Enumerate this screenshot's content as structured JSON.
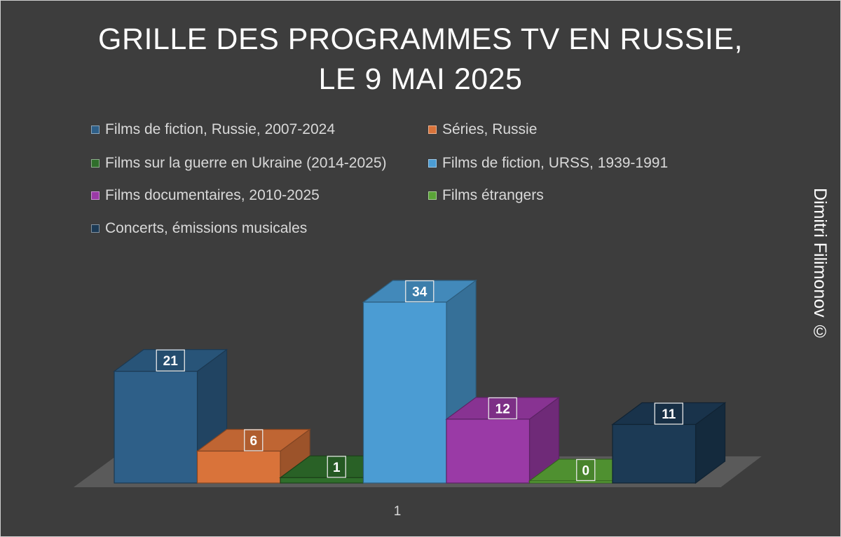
{
  "title": {
    "line1": "GRILLE DES PROGRAMMES TV EN RUSSIE,",
    "line2": "LE 9 MAI 2025"
  },
  "credit": "Dimitri Filimonov ©",
  "chart_data": {
    "type": "bar",
    "style": "3d-clustered-column",
    "categories": [
      "1"
    ],
    "series": [
      {
        "name": "Films de fiction, Russie, 2007-2024",
        "values": [
          21
        ],
        "color": "#2e5f88"
      },
      {
        "name": "Séries, Russie",
        "values": [
          6
        ],
        "color": "#d9733a"
      },
      {
        "name": "Films sur la guerre en Ukraine (2014-2025)",
        "values": [
          1
        ],
        "color": "#2f6e2b"
      },
      {
        "name": "Films de fiction, URSS, 1939-1991",
        "values": [
          34
        ],
        "color": "#4b9cd3"
      },
      {
        "name": "Films documentaires, 2010-2025",
        "values": [
          12
        ],
        "color": "#9a3aa6"
      },
      {
        "name": "Films étrangers",
        "values": [
          0
        ],
        "color": "#5aa437"
      },
      {
        "name": "Concerts, émissions musicales",
        "values": [
          11
        ],
        "color": "#1c3a55"
      }
    ],
    "data_labels": true,
    "legend_position": "top",
    "grid": false,
    "y_axis_visible": false,
    "title": "GRILLE DES PROGRAMMES TV EN RUSSIE, LE 9 MAI 2025"
  }
}
